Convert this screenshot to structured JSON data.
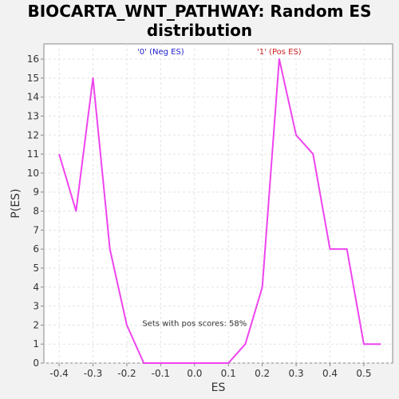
{
  "chart_data": {
    "type": "line",
    "title_line1": "BIOCARTA_WNT_PATHWAY: Random ES",
    "title_line2": "distribution",
    "xlabel": "ES",
    "ylabel": "P(ES)",
    "xlim": [
      -0.445,
      0.585
    ],
    "ylim": [
      0,
      16.8
    ],
    "xticks": [
      -0.4,
      -0.3,
      -0.2,
      -0.1,
      0.0,
      0.1,
      0.2,
      0.3,
      0.4,
      0.5
    ],
    "xtick_labels": [
      "-0.4",
      "-0.3",
      "-0.2",
      "-0.1",
      "0.0",
      "0.1",
      "0.2",
      "0.3",
      "0.4",
      "0.5"
    ],
    "yticks": [
      0,
      1,
      2,
      3,
      4,
      5,
      6,
      7,
      8,
      9,
      10,
      11,
      12,
      13,
      14,
      15,
      16
    ],
    "grid": true,
    "series": [
      {
        "color": "#ee44ee",
        "x": [
          -0.4,
          -0.35,
          -0.3,
          -0.25,
          -0.2,
          -0.15,
          -0.1,
          -0.05,
          0.0,
          0.05,
          0.1,
          0.15,
          0.2,
          0.25,
          0.3,
          0.35,
          0.4,
          0.45,
          0.5,
          0.55
        ],
        "y": [
          11,
          8,
          15,
          6,
          2,
          0,
          0,
          0,
          0,
          0,
          0,
          1,
          4,
          16,
          12,
          11,
          6,
          6,
          1,
          1
        ]
      }
    ],
    "annotations": {
      "neg_label": "'0' (Neg ES)",
      "neg_color": "#2222cc",
      "pos_label": "'1' (Pos ES)",
      "pos_color": "#cc2222",
      "sets_text": "Sets with pos scores: 58%"
    }
  }
}
